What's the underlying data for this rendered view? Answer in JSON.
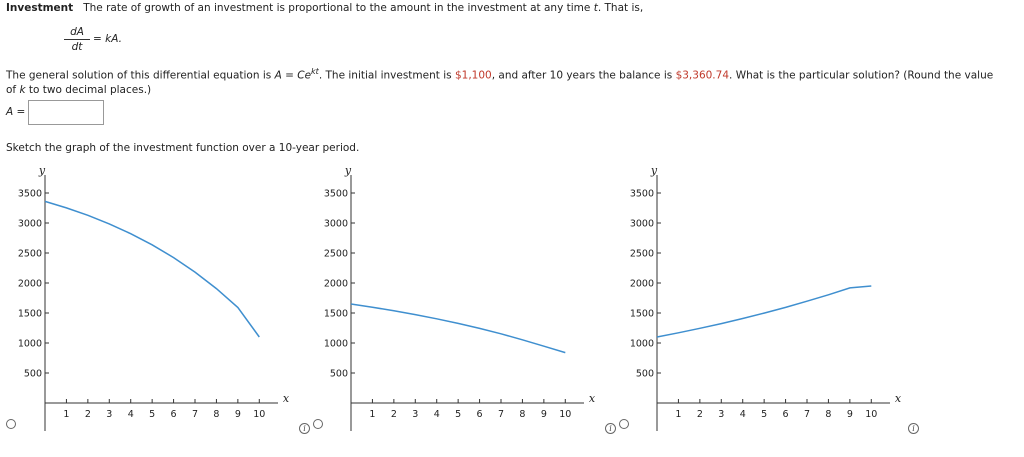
{
  "problem": {
    "heading": "Investment",
    "intro_pre": "The rate of growth of an investment is proportional to the amount in the investment at any time ",
    "intro_var": "t",
    "intro_post": ". That is,",
    "equation": {
      "numerator": "dA",
      "denominator": "dt",
      "rhs": "= kA."
    },
    "general_pre": "The general solution of this differential equation is ",
    "general_lhs": "A",
    "general_eq": " = ",
    "general_C": "Ce",
    "general_exp": "kt",
    "general_mid": ". The initial investment is ",
    "initial_amount": "$1,100",
    "after_text": ", and after 10 years the balance is ",
    "final_amount": "$3,360.74",
    "question_pre": ". What is the particular solution? (Round the value of ",
    "question_var": "k",
    "question_post": " to two decimal places.)"
  },
  "answer": {
    "label_var": "A",
    "label_eq": " =",
    "value": ""
  },
  "sketch_prompt": "Sketch the graph of the investment function over a 10-year period.",
  "colors": {
    "curve": "#3f8fcf",
    "red_value": "#c0392b"
  },
  "icons": {
    "radio": "radio-circle",
    "info": "info-icon"
  },
  "info_glyph": "i",
  "chart_data": [
    {
      "type": "line",
      "xlabel": "x",
      "ylabel": "y",
      "xlim": [
        0,
        10.5
      ],
      "ylim": [
        0,
        3800
      ],
      "xticks": [
        1,
        2,
        3,
        4,
        5,
        6,
        7,
        8,
        9,
        10
      ],
      "yticks": [
        500,
        1000,
        1500,
        2000,
        2500,
        3000,
        3500
      ],
      "series": [
        {
          "x": [
            0,
            1,
            2,
            3,
            4,
            5,
            6,
            7,
            8,
            9,
            10
          ],
          "y": [
            3360,
            3252,
            3128,
            2985,
            2822,
            2636,
            2424,
            2182,
            1906,
            1592,
            1100
          ]
        }
      ]
    },
    {
      "type": "line",
      "xlabel": "x",
      "ylabel": "y",
      "xlim": [
        0,
        10.5
      ],
      "ylim": [
        0,
        3800
      ],
      "xticks": [
        1,
        2,
        3,
        4,
        5,
        6,
        7,
        8,
        9,
        10
      ],
      "yticks": [
        500,
        1000,
        1500,
        2000,
        2500,
        3000,
        3500
      ],
      "series": [
        {
          "x": [
            0,
            1,
            2,
            3,
            4,
            5,
            6,
            7,
            8,
            9,
            10
          ],
          "y": [
            1650,
            1596,
            1537,
            1473,
            1403,
            1327,
            1244,
            1153,
            1053,
            946,
            840
          ]
        }
      ]
    },
    {
      "type": "line",
      "xlabel": "x",
      "ylabel": "y",
      "xlim": [
        0,
        10.5
      ],
      "ylim": [
        0,
        3800
      ],
      "xticks": [
        1,
        2,
        3,
        4,
        5,
        6,
        7,
        8,
        9,
        10
      ],
      "yticks": [
        500,
        1000,
        1500,
        2000,
        2500,
        3000,
        3500
      ],
      "series": [
        {
          "x": [
            0,
            1,
            2,
            3,
            4,
            5,
            6,
            7,
            8,
            9,
            10
          ],
          "y": [
            1100,
            1170,
            1245,
            1324,
            1409,
            1499,
            1594,
            1696,
            1804,
            1919,
            1950
          ]
        }
      ]
    }
  ]
}
